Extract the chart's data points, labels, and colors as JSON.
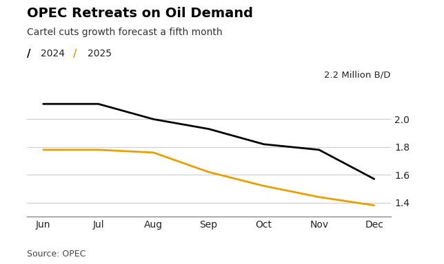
{
  "title": "OPEC Retreats on Oil Demand",
  "subtitle": "Cartel cuts growth forecast a fifth month",
  "ylabel_top": "2.2 Million B/D",
  "source": "Source: OPEC",
  "months": [
    "Jun",
    "Jul",
    "Aug",
    "Sep",
    "Oct",
    "Nov",
    "Dec"
  ],
  "series_2024": [
    2.11,
    2.11,
    2.0,
    1.93,
    1.82,
    1.78,
    1.57
  ],
  "series_2025": [
    1.78,
    1.78,
    1.76,
    1.62,
    1.52,
    1.44,
    1.38
  ],
  "color_2024": "#000000",
  "color_2025": "#E8A000",
  "ylim": [
    1.3,
    2.25
  ],
  "yticks": [
    1.4,
    1.6,
    1.8,
    2.0
  ],
  "background_color": "#ffffff",
  "grid_color": "#cccccc",
  "legend_2024": "2024",
  "legend_2025": "2025",
  "title_fontsize": 14,
  "subtitle_fontsize": 10,
  "axis_fontsize": 10,
  "source_fontsize": 9,
  "tick_color": "#222222"
}
